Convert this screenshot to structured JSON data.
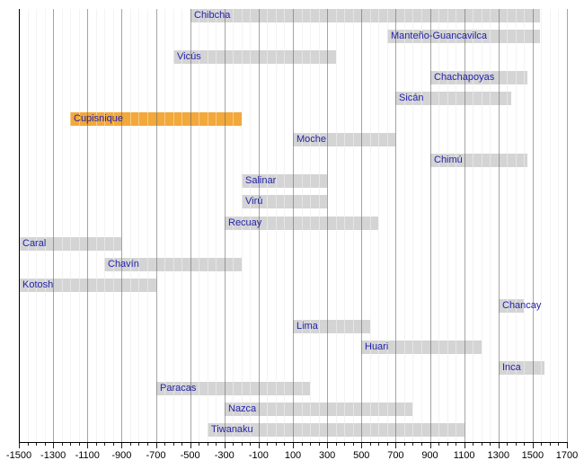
{
  "chart_data": {
    "type": "bar",
    "subtype": "horizontal-timeline-gantt",
    "title": "",
    "xlabel": "",
    "ylabel": "",
    "x_axis": {
      "min": -1500,
      "max": 1700,
      "major_tick_interval": 200,
      "minor_tick_interval": 50,
      "tick_labels": [
        "-1500",
        "-1300",
        "-1100",
        "-900",
        "-700",
        "-500",
        "-300",
        "-100",
        "100",
        "300",
        "500",
        "700",
        "900",
        "1100",
        "1300",
        "1500",
        "1700"
      ],
      "grid": "on",
      "legend": "none"
    },
    "series": [
      {
        "name": "Chibcha",
        "start": -500,
        "end": 1540,
        "highlight": false
      },
      {
        "name": "Manteño-Guancavilca",
        "start": 650,
        "end": 1540,
        "highlight": false
      },
      {
        "name": "Vicús",
        "start": -600,
        "end": 350,
        "highlight": false
      },
      {
        "name": "Chachapoyas",
        "start": 900,
        "end": 1470,
        "highlight": false
      },
      {
        "name": "Sicán",
        "start": 700,
        "end": 1375,
        "highlight": false
      },
      {
        "name": "Cupisnique",
        "start": -1200,
        "end": -200,
        "highlight": true
      },
      {
        "name": "Moche",
        "start": 100,
        "end": 700,
        "highlight": false
      },
      {
        "name": "Chimú",
        "start": 900,
        "end": 1470,
        "highlight": false
      },
      {
        "name": "Salinar",
        "start": -200,
        "end": 300,
        "highlight": false
      },
      {
        "name": "Virú",
        "start": -200,
        "end": 300,
        "highlight": false
      },
      {
        "name": "Recuay",
        "start": -300,
        "end": 600,
        "highlight": false
      },
      {
        "name": "Caral",
        "start": -1500,
        "end": -900,
        "highlight": false
      },
      {
        "name": "Chavín",
        "start": -1000,
        "end": -200,
        "highlight": false
      },
      {
        "name": "Kotosh",
        "start": -1500,
        "end": -700,
        "highlight": false
      },
      {
        "name": "Chancay",
        "start": 1300,
        "end": 1450,
        "highlight": false
      },
      {
        "name": "Lima",
        "start": 100,
        "end": 550,
        "highlight": false
      },
      {
        "name": "Huari",
        "start": 500,
        "end": 1200,
        "highlight": false
      },
      {
        "name": "Inca",
        "start": 1300,
        "end": 1570,
        "highlight": false
      },
      {
        "name": "Paracas",
        "start": -700,
        "end": 200,
        "highlight": false
      },
      {
        "name": "Nazca",
        "start": -300,
        "end": 800,
        "highlight": false
      },
      {
        "name": "Tiwanaku",
        "start": -400,
        "end": 1100,
        "highlight": false
      }
    ]
  },
  "colors": {
    "background": "#ffffff",
    "bar": "#d4d4d4",
    "bar_highlight": "#f2a83a",
    "label_link": "#2323aa",
    "axis": "#000000",
    "grid_minor": "#ececec",
    "grid_major": "rgba(105,105,105,0.6)",
    "grid_minor_over_bar": "rgba(255,255,255,0.4)"
  }
}
